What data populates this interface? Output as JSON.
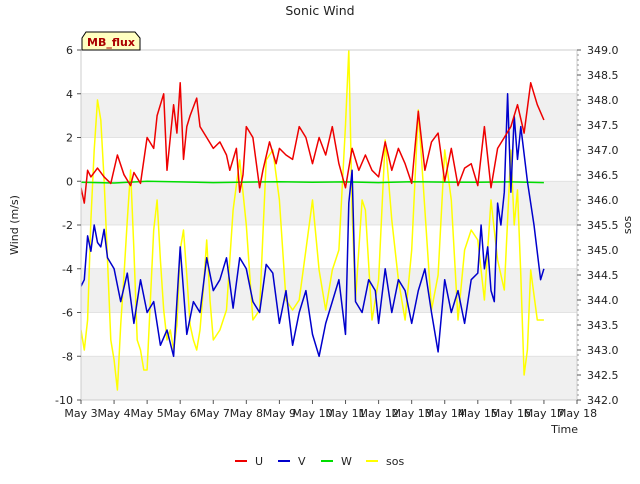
{
  "chart_data": {
    "type": "line",
    "title": "Sonic Wind",
    "badge": "MB_flux",
    "xlabel": "Time",
    "ylabel": "Wind (m/s)",
    "y2label": "sos",
    "xlim": [
      3,
      18
    ],
    "ylim": [
      -10,
      6
    ],
    "y2lim": [
      342.0,
      349.0
    ],
    "xticks": [
      3,
      4,
      5,
      6,
      7,
      8,
      9,
      10,
      11,
      12,
      13,
      14,
      15,
      16,
      17,
      18
    ],
    "xtick_labels": [
      "May 3",
      "May 4",
      "May 5",
      "May 6",
      "May 7",
      "May 8",
      "May 9",
      "May 10",
      "May 11",
      "May 12",
      "May 13",
      "May 14",
      "May 15",
      "May 16",
      "May 17",
      "May 18"
    ],
    "yticks": [
      -10,
      -8,
      -6,
      -4,
      -2,
      0,
      2,
      4,
      6
    ],
    "y2ticks": [
      "342.0",
      "342.5",
      "343.0",
      "343.5",
      "344.0",
      "344.5",
      "345.0",
      "345.5",
      "346.0",
      "346.5",
      "347.0",
      "347.5",
      "348.0",
      "348.5",
      "349.0"
    ],
    "legend_position": "bottom",
    "series": [
      {
        "name": "U",
        "axis": "left",
        "color": "#ee0000",
        "x": [
          3.0,
          3.1,
          3.2,
          3.3,
          3.5,
          3.7,
          3.9,
          4.1,
          4.3,
          4.5,
          4.6,
          4.8,
          5.0,
          5.2,
          5.3,
          5.5,
          5.6,
          5.8,
          5.9,
          6.0,
          6.1,
          6.2,
          6.3,
          6.5,
          6.6,
          6.8,
          7.0,
          7.2,
          7.4,
          7.5,
          7.7,
          7.8,
          7.9,
          8.0,
          8.2,
          8.4,
          8.5,
          8.7,
          8.9,
          9.0,
          9.2,
          9.4,
          9.6,
          9.8,
          10.0,
          10.2,
          10.4,
          10.6,
          10.8,
          11.0,
          11.2,
          11.4,
          11.6,
          11.8,
          12.0,
          12.2,
          12.4,
          12.6,
          12.8,
          13.0,
          13.2,
          13.4,
          13.6,
          13.8,
          14.0,
          14.2,
          14.4,
          14.6,
          14.8,
          15.0,
          15.2,
          15.4,
          15.6,
          15.8,
          16.0,
          16.2,
          16.4,
          16.6,
          16.8,
          17.0
        ],
        "values": [
          -0.3,
          -1.0,
          0.5,
          0.2,
          0.6,
          0.2,
          -0.1,
          1.2,
          0.3,
          -0.2,
          0.4,
          -0.1,
          2.0,
          1.5,
          3.0,
          4.0,
          0.5,
          3.5,
          2.2,
          4.5,
          1.0,
          2.5,
          3.0,
          3.8,
          2.5,
          2.0,
          1.5,
          1.8,
          1.2,
          0.5,
          1.5,
          -0.5,
          0.3,
          2.5,
          2.0,
          -0.3,
          0.5,
          1.8,
          0.8,
          1.5,
          1.2,
          1.0,
          2.5,
          2.0,
          0.8,
          2.0,
          1.2,
          2.5,
          0.8,
          -0.3,
          1.5,
          0.5,
          1.2,
          0.5,
          0.2,
          1.8,
          0.5,
          1.5,
          0.8,
          -0.1,
          3.2,
          0.5,
          1.8,
          2.2,
          0.0,
          1.5,
          -0.2,
          0.6,
          0.8,
          -0.2,
          2.5,
          -0.3,
          1.5,
          2.0,
          2.5,
          3.5,
          2.2,
          4.5,
          3.5,
          2.8
        ]
      },
      {
        "name": "V",
        "axis": "left",
        "color": "#0000cc",
        "x": [
          3.0,
          3.1,
          3.2,
          3.3,
          3.4,
          3.5,
          3.6,
          3.7,
          3.8,
          4.0,
          4.2,
          4.4,
          4.6,
          4.8,
          5.0,
          5.2,
          5.4,
          5.6,
          5.8,
          6.0,
          6.2,
          6.4,
          6.6,
          6.8,
          7.0,
          7.2,
          7.4,
          7.6,
          7.8,
          8.0,
          8.2,
          8.4,
          8.6,
          8.8,
          9.0,
          9.2,
          9.4,
          9.6,
          9.8,
          10.0,
          10.2,
          10.4,
          10.6,
          10.8,
          11.0,
          11.1,
          11.2,
          11.3,
          11.5,
          11.7,
          11.9,
          12.0,
          12.2,
          12.4,
          12.6,
          12.8,
          13.0,
          13.2,
          13.4,
          13.6,
          13.8,
          14.0,
          14.2,
          14.4,
          14.6,
          14.8,
          15.0,
          15.1,
          15.2,
          15.3,
          15.4,
          15.5,
          15.6,
          15.7,
          15.8,
          15.9,
          16.0,
          16.1,
          16.2,
          16.3,
          16.5,
          16.7,
          16.9,
          17.0
        ],
        "values": [
          -4.8,
          -4.5,
          -2.5,
          -3.2,
          -2.0,
          -2.8,
          -3.0,
          -2.2,
          -3.5,
          -4.0,
          -5.5,
          -4.2,
          -6.5,
          -4.5,
          -6.0,
          -5.5,
          -7.5,
          -6.8,
          -8.0,
          -3.0,
          -7.0,
          -5.5,
          -6.0,
          -3.5,
          -5.0,
          -4.5,
          -3.5,
          -5.8,
          -3.5,
          -4.0,
          -5.5,
          -6.0,
          -3.8,
          -4.2,
          -6.5,
          -5.0,
          -7.5,
          -6.0,
          -5.0,
          -7.0,
          -8.0,
          -6.5,
          -5.5,
          -4.5,
          -7.0,
          -1.0,
          0.5,
          -5.5,
          -6.0,
          -4.5,
          -5.0,
          -6.5,
          -4.0,
          -6.0,
          -4.5,
          -5.0,
          -6.5,
          -5.0,
          -4.0,
          -6.0,
          -7.8,
          -4.5,
          -6.0,
          -5.0,
          -6.5,
          -4.5,
          -4.2,
          -2.0,
          -4.0,
          -3.0,
          -5.0,
          -5.5,
          -1.0,
          -2.0,
          -0.5,
          4.0,
          -0.5,
          3.0,
          1.0,
          2.5,
          0.0,
          -2.0,
          -4.5,
          -4.0
        ]
      },
      {
        "name": "W",
        "axis": "left",
        "color": "#00dd00",
        "x": [
          3.0,
          4.0,
          5.0,
          6.0,
          7.0,
          8.0,
          9.0,
          10.0,
          11.0,
          12.0,
          13.0,
          14.0,
          15.0,
          16.0,
          17.0
        ],
        "values": [
          -0.05,
          -0.08,
          0.0,
          -0.03,
          -0.06,
          -0.04,
          -0.02,
          -0.05,
          -0.03,
          -0.06,
          -0.02,
          -0.04,
          -0.05,
          -0.03,
          -0.06
        ]
      },
      {
        "name": "sos",
        "axis": "right",
        "color": "#ffff00",
        "x": [
          3.0,
          3.1,
          3.2,
          3.3,
          3.4,
          3.5,
          3.6,
          3.7,
          3.8,
          3.9,
          4.0,
          4.1,
          4.2,
          4.3,
          4.4,
          4.5,
          4.6,
          4.7,
          4.8,
          4.9,
          5.0,
          5.1,
          5.2,
          5.3,
          5.4,
          5.5,
          5.6,
          5.7,
          5.8,
          5.9,
          6.0,
          6.1,
          6.2,
          6.3,
          6.4,
          6.5,
          6.6,
          6.7,
          6.8,
          6.9,
          7.0,
          7.2,
          7.4,
          7.6,
          7.8,
          8.0,
          8.2,
          8.4,
          8.6,
          8.8,
          9.0,
          9.2,
          9.4,
          9.6,
          9.8,
          10.0,
          10.2,
          10.4,
          10.6,
          10.8,
          11.0,
          11.1,
          11.2,
          11.3,
          11.4,
          11.5,
          11.6,
          11.8,
          12.0,
          12.2,
          12.4,
          12.6,
          12.8,
          13.0,
          13.2,
          13.4,
          13.6,
          13.8,
          14.0,
          14.2,
          14.4,
          14.6,
          14.8,
          15.0,
          15.2,
          15.4,
          15.6,
          15.8,
          16.0,
          16.1,
          16.2,
          16.3,
          16.4,
          16.5,
          16.6,
          16.8,
          17.0
        ],
        "values": [
          343.4,
          343.0,
          343.6,
          345.6,
          347.0,
          348.0,
          347.6,
          346.4,
          344.8,
          343.2,
          342.8,
          342.2,
          343.5,
          344.5,
          345.6,
          346.6,
          345.0,
          343.2,
          343.0,
          342.6,
          342.6,
          344.0,
          345.4,
          346.0,
          344.8,
          343.8,
          343.2,
          343.4,
          343.0,
          343.5,
          345.0,
          345.4,
          344.5,
          343.5,
          343.2,
          343.0,
          343.4,
          344.2,
          345.2,
          344.0,
          343.2,
          343.4,
          343.8,
          345.8,
          346.8,
          345.5,
          343.6,
          343.8,
          346.8,
          347.0,
          346.0,
          344.0,
          343.8,
          344.0,
          345.0,
          346.0,
          344.6,
          343.8,
          344.6,
          345.0,
          347.5,
          349.0,
          345.8,
          344.0,
          345.0,
          346.0,
          345.8,
          343.6,
          344.4,
          347.2,
          345.6,
          344.4,
          343.6,
          345.0,
          347.8,
          345.8,
          343.8,
          344.5,
          347.0,
          346.0,
          343.6,
          345.0,
          345.4,
          345.2,
          344.0,
          346.0,
          344.8,
          344.2,
          347.0,
          345.5,
          346.2,
          344.5,
          342.5,
          343.0,
          344.6,
          343.6,
          343.6
        ]
      }
    ]
  }
}
